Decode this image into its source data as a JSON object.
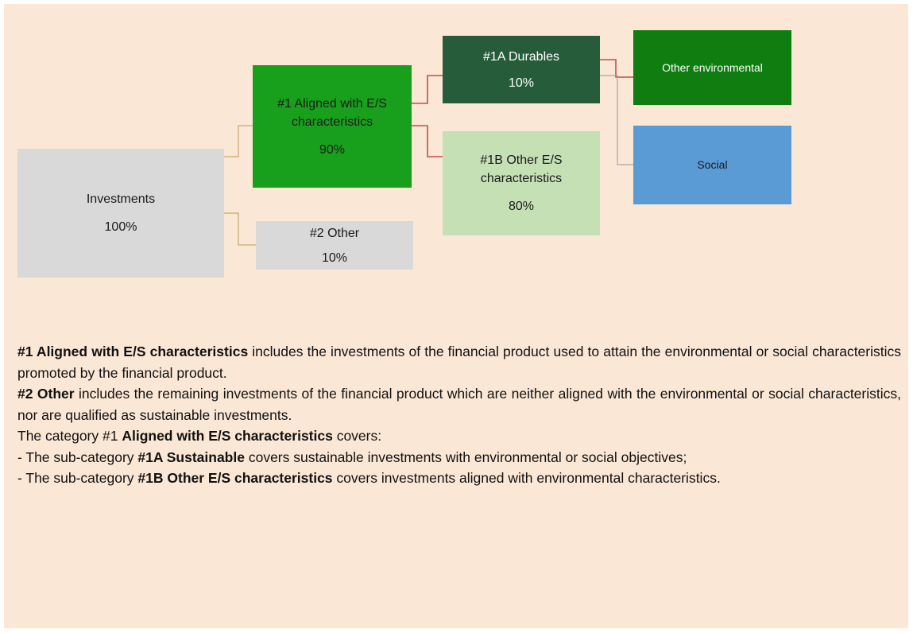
{
  "nodes": [
    {
      "label": "Investments",
      "value": "100%"
    },
    {
      "label": "#1 Aligned with E/S characteristics",
      "value": "90%"
    },
    {
      "label": "#2 Other",
      "value": "10%"
    },
    {
      "label": "#1A Durables",
      "value": "10%"
    },
    {
      "label": "#1B Other E/S characteristics",
      "value": "80%"
    },
    {
      "label": "Other environmental"
    },
    {
      "label": "Social"
    }
  ],
  "paragraphs": [
    [
      {
        "text": "#1 Aligned with E/S characteristics",
        "bold": true
      },
      {
        "text": " includes the investments of the financial product used to attain the environmental or social characteristics promoted by the financial product."
      }
    ],
    [
      {
        "text": "#2 Other",
        "bold": true
      },
      {
        "text": " includes the remaining investments of the financial product which are neither aligned with the environmental or social characteristics, nor are qualified as sustainable investments."
      }
    ],
    [
      {
        "text": "The category #1 "
      },
      {
        "text": "Aligned with E/S characteristics",
        "bold": true
      },
      {
        "text": " covers:"
      }
    ],
    [
      {
        "text": "- The sub-category "
      },
      {
        "text": "#1A Sustainable",
        "bold": true
      },
      {
        "text": " covers sustainable investments with environmental or social objectives;"
      }
    ],
    [
      {
        "text": "- The sub-category "
      },
      {
        "text": "#1B Other E/S characteristics",
        "bold": true
      },
      {
        "text": " covers investments aligned with environmental characteristics."
      }
    ]
  ]
}
